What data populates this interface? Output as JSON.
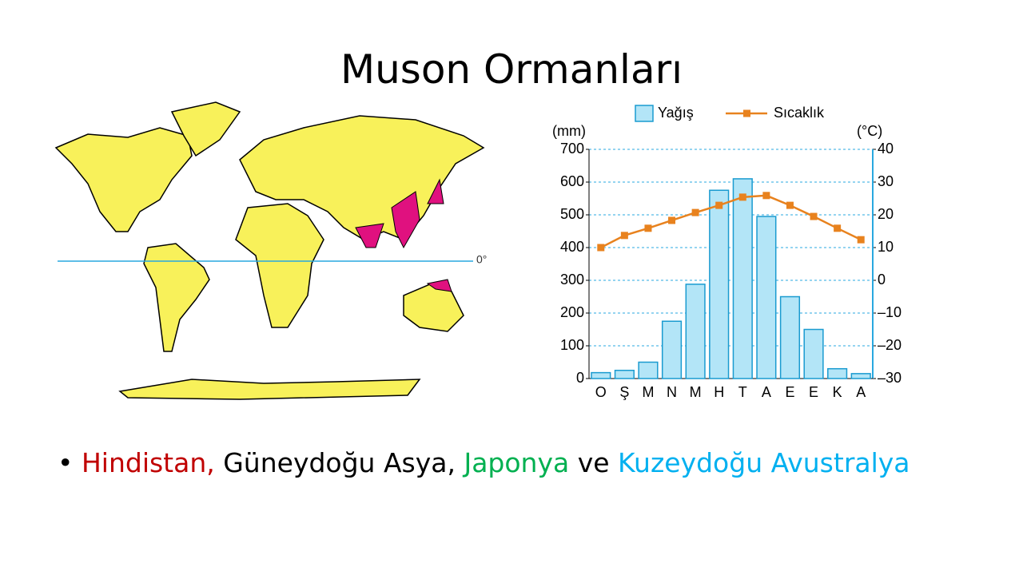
{
  "title": "Muson Ormanları",
  "map": {
    "equator_label": "0°"
  },
  "bullet": [
    {
      "text": "Hindistan,",
      "color": "#c00000"
    },
    {
      "text": " Güneydoğu Asya, ",
      "color": "#000000"
    },
    {
      "text": "Japonya",
      "color": "#00b050"
    },
    {
      "text": " ve ",
      "color": "#000000"
    },
    {
      "text": "Kuzeydoğu Avustralya",
      "color": "#00b0f0"
    }
  ],
  "chart_data": {
    "type": "bar",
    "y_label": "(mm)",
    "y2_label": "(°C)",
    "categories": [
      "O",
      "Ş",
      "M",
      "N",
      "M",
      "H",
      "T",
      "A",
      "E",
      "E",
      "K",
      "A"
    ],
    "series": [
      {
        "name": "Yağış",
        "type": "bar",
        "color": "#b3e5f7",
        "values": [
          18,
          25,
          50,
          175,
          288,
          575,
          610,
          495,
          250,
          150,
          30,
          15
        ]
      },
      {
        "name": "Sıcaklık",
        "type": "line",
        "axis": "y2",
        "color": "#e8821e",
        "values": [
          10,
          13.7,
          15.9,
          18.3,
          20.7,
          22.9,
          25.4,
          25.9,
          22.9,
          19.5,
          15.9,
          12.4
        ]
      }
    ],
    "ylim": [
      0,
      700
    ],
    "yticks": [
      0,
      100,
      200,
      300,
      400,
      500,
      600,
      700
    ],
    "y2lim": [
      -30,
      40
    ],
    "y2ticks": [
      {
        "value": -30,
        "label": "–30"
      },
      {
        "value": -20,
        "label": "–20"
      },
      {
        "value": -10,
        "label": "–10"
      },
      0,
      10,
      20,
      30,
      40
    ],
    "grid": true
  }
}
